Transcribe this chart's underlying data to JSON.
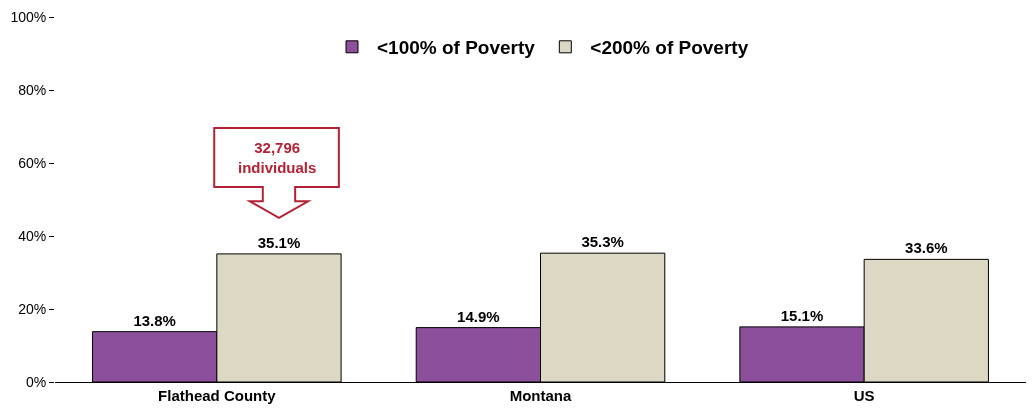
{
  "chart_data": {
    "type": "bar",
    "categories": [
      "Flathead County",
      "Montana",
      "US"
    ],
    "series": [
      {
        "name": "<100% of Poverty",
        "color": "#8b4f9b",
        "values": [
          13.8,
          14.9,
          15.1
        ],
        "value_labels": [
          "13.8%",
          "14.9%",
          "15.1%"
        ]
      },
      {
        "name": "<200% of Poverty",
        "color": "#ddd8c4",
        "values": [
          35.1,
          35.3,
          33.6
        ],
        "value_labels": [
          "35.1%",
          "35.3%",
          "33.6%"
        ]
      }
    ],
    "ylim": [
      0,
      100
    ],
    "yticks": [
      {
        "value": 0,
        "label": "0%"
      },
      {
        "value": 20,
        "label": "20%"
      },
      {
        "value": 40,
        "label": "40%"
      },
      {
        "value": 60,
        "label": "60%"
      },
      {
        "value": 80,
        "label": "80%"
      },
      {
        "value": 100,
        "label": "100%"
      }
    ],
    "legend": "top",
    "annotations": [
      "32,796\nindividuals"
    ]
  }
}
